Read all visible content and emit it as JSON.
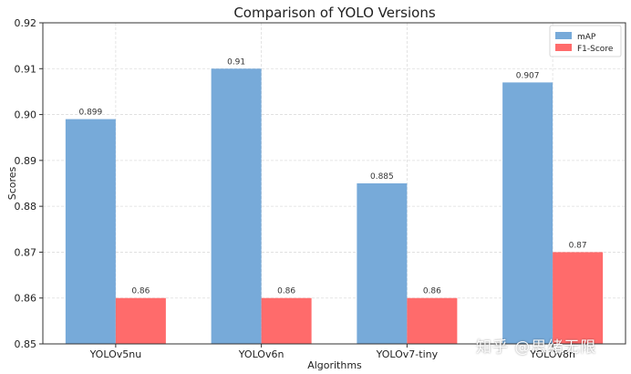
{
  "chart_data": {
    "type": "bar",
    "title": "Comparison of YOLO Versions",
    "xlabel": "Algorithms",
    "ylabel": "Scores",
    "categories": [
      "YOLOv5nu",
      "YOLOv6n",
      "YOLOv7-tiny",
      "YOLOv8n"
    ],
    "series": [
      {
        "name": "mAP",
        "values": [
          0.899,
          0.91,
          0.885,
          0.907
        ],
        "labels": [
          "0.899",
          "0.91",
          "0.885",
          "0.907"
        ],
        "color": "#77aad9"
      },
      {
        "name": "F1-Score",
        "values": [
          0.86,
          0.86,
          0.86,
          0.87
        ],
        "labels": [
          "0.86",
          "0.86",
          "0.86",
          "0.87"
        ],
        "color": "#ff6b6b"
      }
    ],
    "ylim": [
      0.85,
      0.92
    ],
    "yticks": [
      0.85,
      0.86,
      0.87,
      0.88,
      0.89,
      0.9,
      0.91,
      0.92
    ],
    "ytick_labels": [
      "0.85",
      "0.86",
      "0.87",
      "0.88",
      "0.89",
      "0.90",
      "0.91",
      "0.92"
    ],
    "grid": true,
    "legend_position": "top-right"
  },
  "watermark": "知乎 @思绪无限"
}
